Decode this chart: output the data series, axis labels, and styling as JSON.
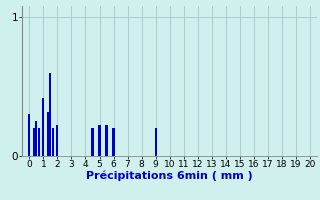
{
  "title": "",
  "xlabel": "Précipitations 6min ( mm )",
  "ylabel": "",
  "background_color": "#cff0ec",
  "bar_color": "#0000cc",
  "grid_color": "#a8c8c8",
  "spine_color": "#888888",
  "xlim": [
    -0.5,
    20.5
  ],
  "ylim": [
    0,
    1.08
  ],
  "yticks": [
    0,
    1
  ],
  "xticks": [
    0,
    1,
    2,
    3,
    4,
    5,
    6,
    7,
    8,
    9,
    10,
    11,
    12,
    13,
    14,
    15,
    16,
    17,
    18,
    19,
    20
  ],
  "bar_positions": [
    0.0,
    0.3,
    0.5,
    0.7,
    1.0,
    1.3,
    1.5,
    1.7,
    2.0,
    4.5,
    5.0,
    5.5,
    6.0,
    9.0
  ],
  "bar_heights": [
    0.3,
    0.2,
    0.25,
    0.2,
    0.42,
    0.32,
    0.6,
    0.2,
    0.22,
    0.2,
    0.22,
    0.22,
    0.2,
    0.2
  ],
  "bar_width": 0.15,
  "xlabel_fontsize": 8,
  "tick_fontsize": 6.5,
  "ytick_fontsize": 7.5,
  "figsize": [
    3.2,
    2.0
  ],
  "dpi": 100
}
